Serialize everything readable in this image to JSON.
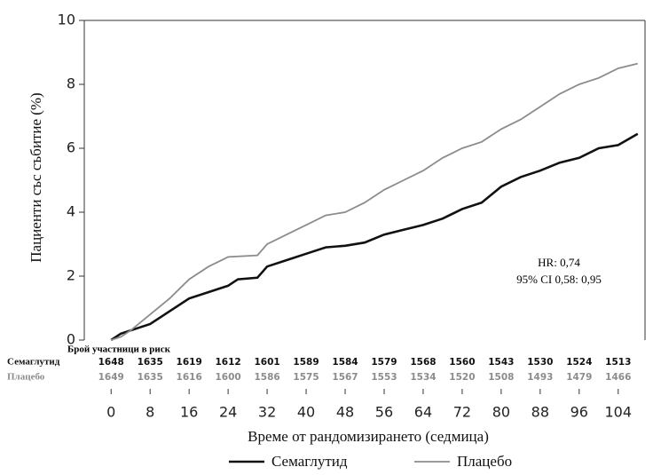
{
  "chart_data": {
    "type": "line",
    "y_label": "Пациенти със събитие (%)",
    "x_label": "Време от рандомизирането (седмица)",
    "annotations": [
      "HR: 0,74",
      "95% CI 0,58: 0,95"
    ],
    "xlim": [
      -5.5,
      109.5
    ],
    "xticks": [
      0,
      8,
      16,
      24,
      32,
      40,
      48,
      56,
      64,
      72,
      80,
      88,
      96,
      104
    ],
    "ylim": [
      0,
      10
    ],
    "yticks": [
      0,
      2,
      4,
      6,
      8,
      10
    ],
    "series": [
      {
        "name": "Семаглутид",
        "color": "#111111",
        "x": [
          0,
          2,
          4,
          8,
          12,
          16,
          20,
          24,
          26,
          30,
          32,
          36,
          40,
          44,
          48,
          52,
          56,
          60,
          64,
          68,
          72,
          76,
          80,
          84,
          88,
          92,
          96,
          100,
          104,
          108
        ],
        "values": [
          0,
          0.2,
          0.3,
          0.5,
          0.9,
          1.3,
          1.5,
          1.7,
          1.9,
          1.95,
          2.3,
          2.5,
          2.7,
          2.9,
          2.95,
          3.05,
          3.3,
          3.45,
          3.6,
          3.8,
          4.1,
          4.3,
          4.8,
          5.1,
          5.3,
          5.55,
          5.7,
          6.0,
          6.1,
          6.45
        ]
      },
      {
        "name": "Плацебо",
        "color": "#8c8c8c",
        "x": [
          0,
          2,
          4,
          8,
          12,
          16,
          20,
          24,
          30,
          32,
          36,
          40,
          44,
          48,
          52,
          56,
          60,
          64,
          68,
          72,
          76,
          80,
          84,
          88,
          92,
          96,
          100,
          104,
          108
        ],
        "values": [
          0,
          0.1,
          0.3,
          0.8,
          1.3,
          1.9,
          2.3,
          2.6,
          2.65,
          3.0,
          3.3,
          3.6,
          3.9,
          4.0,
          4.3,
          4.7,
          5.0,
          5.3,
          5.7,
          6.0,
          6.2,
          6.6,
          6.9,
          7.3,
          7.7,
          8.0,
          8.2,
          8.5,
          8.65
        ]
      }
    ],
    "risk_table": {
      "title": "Брой участници в риск",
      "rows": [
        {
          "name": "Семаглутид",
          "color": "#111111",
          "values": [
            1648,
            1635,
            1619,
            1612,
            1601,
            1589,
            1584,
            1579,
            1568,
            1560,
            1543,
            1530,
            1524,
            1513
          ]
        },
        {
          "name": "Плацебо",
          "color": "#8c8c8c",
          "values": [
            1649,
            1635,
            1616,
            1600,
            1586,
            1575,
            1567,
            1553,
            1534,
            1520,
            1508,
            1493,
            1479,
            1466
          ]
        }
      ]
    }
  }
}
